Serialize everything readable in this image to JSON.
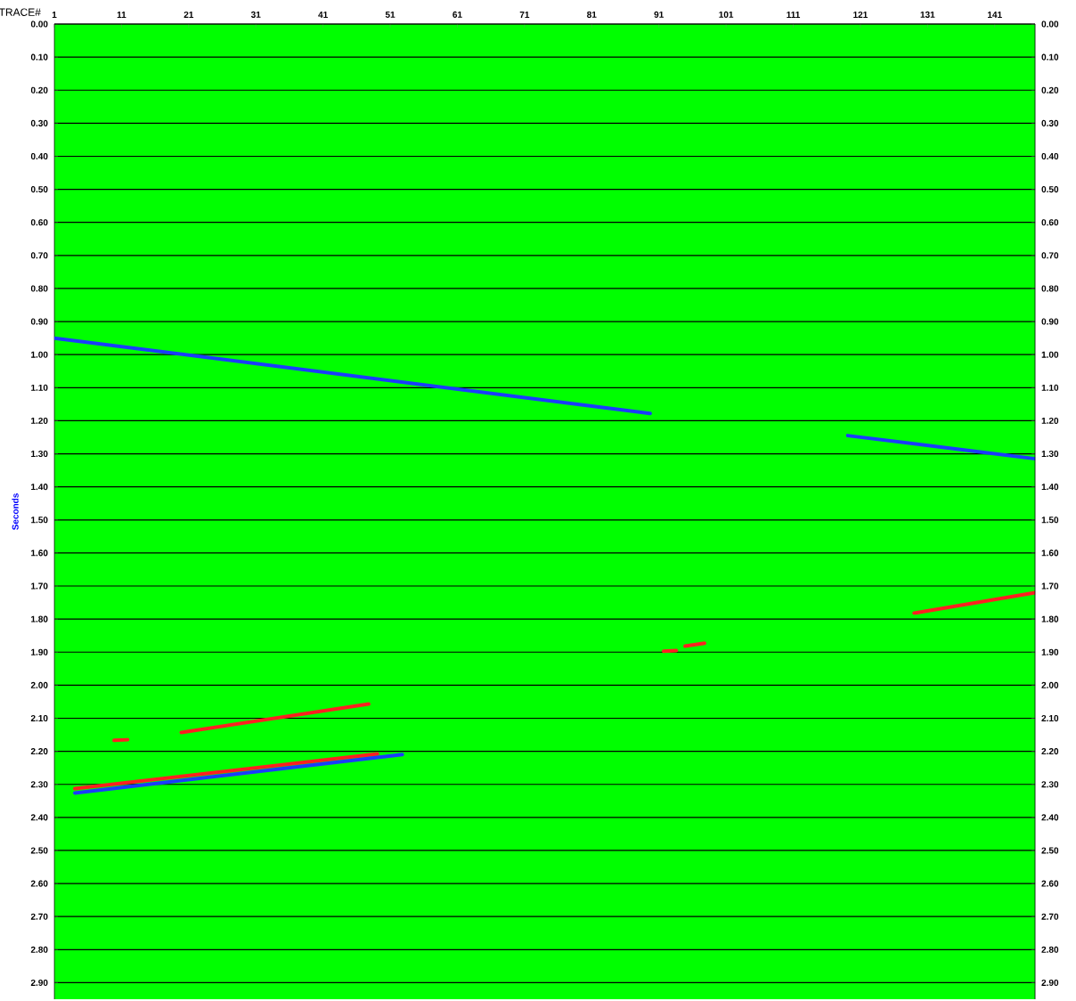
{
  "chart_data": {
    "type": "line",
    "xlabel": "TRACE#",
    "ylabel": "Seconds",
    "xlim": [
      1,
      147
    ],
    "ylim": [
      2.95,
      0
    ],
    "xticks": [
      1,
      11,
      21,
      31,
      41,
      51,
      61,
      71,
      81,
      91,
      101,
      111,
      121,
      131,
      141
    ],
    "yticks": [
      {
        "value": 0,
        "label": "0.00"
      },
      {
        "value": 0.1,
        "label": "0.10"
      },
      {
        "value": 0.2,
        "label": "0.20"
      },
      {
        "value": 0.3,
        "label": "0.30"
      },
      {
        "value": 0.4,
        "label": "0.40"
      },
      {
        "value": 0.5,
        "label": "0.50"
      },
      {
        "value": 0.6,
        "label": "0.60"
      },
      {
        "value": 0.7,
        "label": "0.70"
      },
      {
        "value": 0.8,
        "label": "0.80"
      },
      {
        "value": 0.9,
        "label": "0.90"
      },
      {
        "value": 1.0,
        "label": "1.00"
      },
      {
        "value": 1.1,
        "label": "1.10"
      },
      {
        "value": 1.2,
        "label": "1.20"
      },
      {
        "value": 1.3,
        "label": "1.30"
      },
      {
        "value": 1.4,
        "label": "1.40"
      },
      {
        "value": 1.5,
        "label": "1.50"
      },
      {
        "value": 1.6,
        "label": "1.60"
      },
      {
        "value": 1.7,
        "label": "1.70"
      },
      {
        "value": 1.8,
        "label": "1.80"
      },
      {
        "value": 1.9,
        "label": "1.90"
      },
      {
        "value": 2.0,
        "label": "2.00"
      },
      {
        "value": 2.1,
        "label": "2.10"
      },
      {
        "value": 2.2,
        "label": "2.20"
      },
      {
        "value": 2.3,
        "label": "2.30"
      },
      {
        "value": 2.4,
        "label": "2.40"
      },
      {
        "value": 2.5,
        "label": "2.50"
      },
      {
        "value": 2.6,
        "label": "2.60"
      },
      {
        "value": 2.7,
        "label": "2.70"
      },
      {
        "value": 2.8,
        "label": "2.80"
      },
      {
        "value": 2.9,
        "label": "2.90"
      }
    ],
    "y2lim": [
      2.95,
      0
    ],
    "y2ticks": [
      {
        "value": 0,
        "label": "0.00"
      },
      {
        "value": 0.1,
        "label": "0.10"
      },
      {
        "value": 0.2,
        "label": "0.20"
      },
      {
        "value": 0.3,
        "label": "0.30"
      },
      {
        "value": 0.4,
        "label": "0.40"
      },
      {
        "value": 0.5,
        "label": "0.50"
      },
      {
        "value": 0.6,
        "label": "0.60"
      },
      {
        "value": 0.7,
        "label": "0.70"
      },
      {
        "value": 0.8,
        "label": "0.80"
      },
      {
        "value": 0.9,
        "label": "0.90"
      },
      {
        "value": 1.0,
        "label": "1.00"
      },
      {
        "value": 1.1,
        "label": "1.10"
      },
      {
        "value": 1.2,
        "label": "1.20"
      },
      {
        "value": 1.3,
        "label": "1.30"
      },
      {
        "value": 1.4,
        "label": "1.40"
      },
      {
        "value": 1.5,
        "label": "1.50"
      },
      {
        "value": 1.6,
        "label": "1.60"
      },
      {
        "value": 1.7,
        "label": "1.70"
      },
      {
        "value": 1.8,
        "label": "1.80"
      },
      {
        "value": 1.9,
        "label": "1.90"
      },
      {
        "value": 2.0,
        "label": "2.00"
      },
      {
        "value": 2.1,
        "label": "2.10"
      },
      {
        "value": 2.2,
        "label": "2.20"
      },
      {
        "value": 2.3,
        "label": "2.30"
      },
      {
        "value": 2.4,
        "label": "2.40"
      },
      {
        "value": 2.5,
        "label": "2.50"
      },
      {
        "value": 2.6,
        "label": "2.60"
      },
      {
        "value": 2.7,
        "label": "2.70"
      },
      {
        "value": 2.8,
        "label": "2.80"
      },
      {
        "value": 2.9,
        "label": "2.90"
      }
    ],
    "grid": "y",
    "marker": "none",
    "line_style": "solid",
    "series": [
      {
        "color": "#1a3cff",
        "x": [
          1,
          89.7
        ],
        "values": [
          0.95,
          1.178
        ]
      },
      {
        "color": "#1a3cff",
        "x": [
          119.1,
          147
        ],
        "values": [
          1.245,
          1.315
        ]
      },
      {
        "color": "#ff2020",
        "x": [
          129,
          147
        ],
        "values": [
          1.782,
          1.72
        ]
      },
      {
        "color": "#ff2020",
        "x": [
          91.7,
          93.6
        ],
        "values": [
          1.897,
          1.895
        ]
      },
      {
        "color": "#ff2020",
        "x": [
          94.9,
          97.8
        ],
        "values": [
          1.882,
          1.873
        ]
      },
      {
        "color": "#ff2020",
        "x": [
          9.9,
          11.9
        ],
        "values": [
          2.167,
          2.165
        ]
      },
      {
        "color": "#ff2020",
        "x": [
          19.9,
          47.8
        ],
        "values": [
          2.143,
          2.057
        ]
      },
      {
        "color": "#ff2020",
        "x": [
          4.05,
          49.1
        ],
        "values": [
          2.313,
          2.208
        ]
      },
      {
        "color": "#1a3cff",
        "x": [
          4.05,
          52.8
        ],
        "values": [
          2.326,
          2.21
        ]
      }
    ]
  }
}
